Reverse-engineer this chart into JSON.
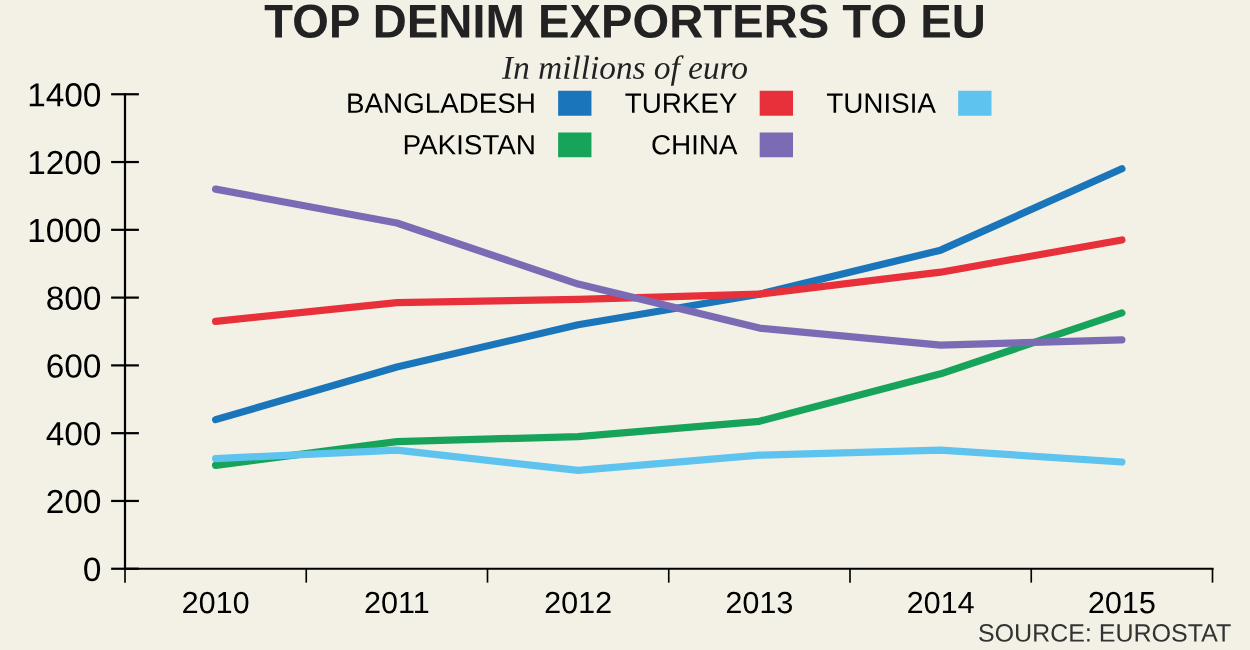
{
  "chart_data": {
    "type": "line",
    "title": "TOP DENIM EXPORTERS TO EU",
    "subtitle": "In millions of euro",
    "categories": [
      "2010",
      "2011",
      "2012",
      "2013",
      "2014",
      "2015"
    ],
    "series": [
      {
        "name": "BANGLADESH",
        "color": "#1a75bb",
        "values": [
          440,
          595,
          720,
          810,
          940,
          1180
        ]
      },
      {
        "name": "PAKISTAN",
        "color": "#17a45a",
        "values": [
          305,
          375,
          390,
          435,
          575,
          755
        ]
      },
      {
        "name": "TURKEY",
        "color": "#e8303a",
        "values": [
          730,
          785,
          795,
          810,
          875,
          970
        ]
      },
      {
        "name": "CHINA",
        "color": "#7b6bb5",
        "values": [
          1120,
          1020,
          840,
          710,
          660,
          675
        ]
      },
      {
        "name": "TUNISIA",
        "color": "#5ec3ee",
        "values": [
          325,
          350,
          290,
          335,
          350,
          315
        ]
      }
    ],
    "ylim": [
      0,
      1400
    ],
    "yticks": [
      0,
      200,
      400,
      600,
      800,
      1000,
      1200,
      1400
    ],
    "grid": false,
    "legend": "top",
    "marker": "none",
    "line_style": "solid",
    "annotations": [
      "SOURCE: EUROSTAT"
    ]
  }
}
